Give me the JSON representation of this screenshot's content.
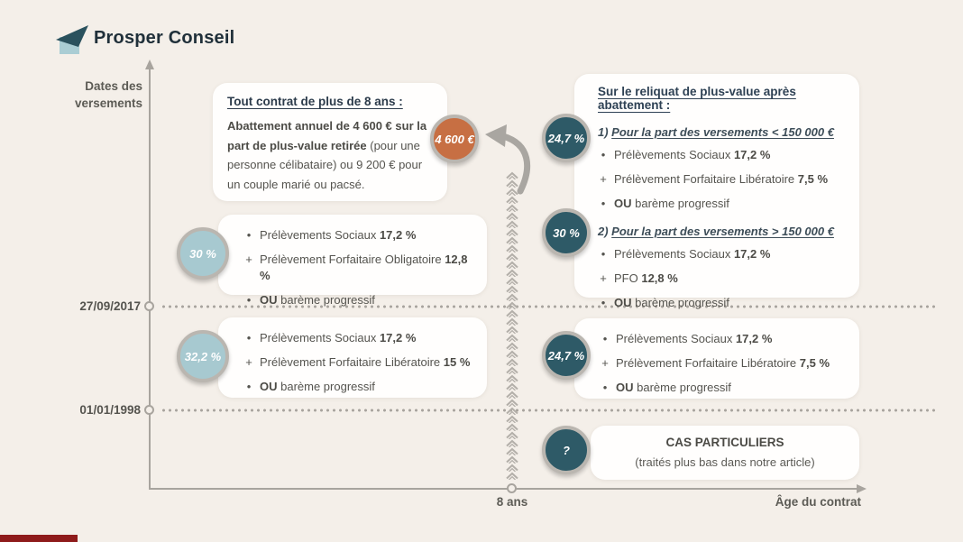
{
  "brand": {
    "name": "Prosper Conseil"
  },
  "icons": {
    "logo": "paper-plane-icon",
    "divider": "chevron-up-divider",
    "arrow": "curved-arrow-icon"
  },
  "colors": {
    "background": "#f4efe9",
    "card": "#fffefd",
    "teal_badge": "#2e5a67",
    "blue_badge": "#a7c9d0",
    "orange_badge": "#c76f43",
    "axis_gray": "#a8a49e",
    "heading_navy": "#2e4154",
    "progress_red": "#8e1b1b"
  },
  "axes": {
    "y_label_1": "Dates des",
    "y_label_2": "versements",
    "y_tick_top": "27/09/2017",
    "y_tick_bottom": "01/01/1998",
    "x_tick": "8 ans",
    "x_label": "Âge du contrat"
  },
  "abattement": {
    "badge": "4 600 €",
    "title": "Tout contrat de plus de 8 ans :",
    "lead_bold": "Abattement annuel de 4 600 € sur la part de plus-value retirée",
    "lead_rest": " (pour une personne célibataire) ou 9 200 € pour un couple marié ou pacsé."
  },
  "reliquat": {
    "header": "Sur le reliquat de plus-value après abattement :",
    "sections": [
      {
        "badge": "24,7 %",
        "num": "1) ",
        "title": "Pour la part des versements < 150 000 €",
        "lines": [
          {
            "marker": "•",
            "pre": "Prélèvements Sociaux ",
            "strong": "17,2 %",
            "post": ""
          },
          {
            "marker": "+",
            "pre": "Prélèvement Forfaitaire Libératoire ",
            "strong": "7,5 %",
            "post": ""
          },
          {
            "marker": "•",
            "pre": "",
            "strong": "OU",
            "post": " barème progressif"
          }
        ]
      },
      {
        "badge": "30 %",
        "num": "2) ",
        "title": "Pour la part des versements > 150 000 €",
        "lines": [
          {
            "marker": "•",
            "pre": "Prélèvements Sociaux ",
            "strong": "17,2 %",
            "post": ""
          },
          {
            "marker": "+",
            "pre": "PFO ",
            "strong": "12,8 %",
            "post": ""
          },
          {
            "marker": "•",
            "pre": "",
            "strong": "OU",
            "post": " barème progressif"
          }
        ]
      }
    ]
  },
  "boxes": {
    "mid_left": {
      "badge": "30 %",
      "lines": [
        {
          "marker": "•",
          "pre": "Prélèvements Sociaux ",
          "strong": "17,2 %",
          "post": ""
        },
        {
          "marker": "+",
          "pre": "Prélèvement Forfaitaire Obligatoire ",
          "strong": "12,8 %",
          "post": ""
        },
        {
          "marker": "•",
          "pre": "",
          "strong": "OU",
          "post": " barème progressif"
        }
      ]
    },
    "low_left": {
      "badge": "32,2 %",
      "lines": [
        {
          "marker": "•",
          "pre": "Prélèvements Sociaux ",
          "strong": "17,2 %",
          "post": ""
        },
        {
          "marker": "+",
          "pre": "Prélèvement Forfaitaire Libératoire ",
          "strong": "15 %",
          "post": ""
        },
        {
          "marker": "•",
          "pre": "",
          "strong": "OU",
          "post": " barème progressif"
        }
      ]
    },
    "low_right": {
      "badge": "24,7 %",
      "lines": [
        {
          "marker": "•",
          "pre": "Prélèvements Sociaux ",
          "strong": "17,2 %",
          "post": ""
        },
        {
          "marker": "+",
          "pre": "Prélèvement Forfaitaire Libératoire ",
          "strong": "7,5 %",
          "post": ""
        },
        {
          "marker": "•",
          "pre": "",
          "strong": "OU",
          "post": " barème progressif"
        }
      ]
    }
  },
  "special": {
    "badge": "?",
    "title": "CAS PARTICULIERS",
    "subtitle": "(traités plus bas dans notre article)"
  }
}
